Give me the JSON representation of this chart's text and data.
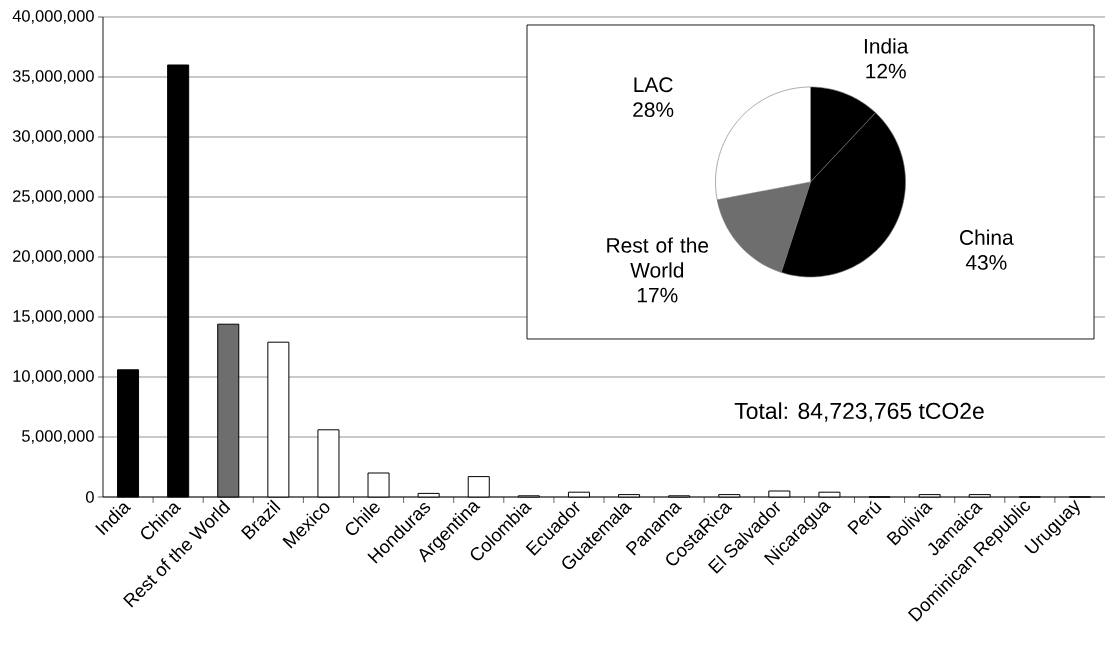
{
  "chart_data": [
    {
      "type": "bar",
      "categories": [
        "India",
        "China",
        "Rest of the World",
        "Brazil",
        "Mexico",
        "Chile",
        "Honduras",
        "Argentina",
        "Colombia",
        "Ecuador",
        "Guatemala",
        "Panama",
        "CostaRica",
        "El Salvador",
        "Nicaragua",
        "Perú",
        "Bolivia",
        "Jamaica",
        "Dominican Republic",
        "Uruguay"
      ],
      "values": [
        10600000,
        36000000,
        14400000,
        12900000,
        5600000,
        2000000,
        300000,
        1700000,
        100000,
        400000,
        200000,
        100000,
        200000,
        500000,
        400000,
        0,
        200000,
        200000,
        0,
        0
      ],
      "colors": [
        "#000000",
        "#000000",
        "#6e6e6e",
        "#ffffff",
        "#ffffff",
        "#ffffff",
        "#ffffff",
        "#ffffff",
        "#ffffff",
        "#ffffff",
        "#ffffff",
        "#ffffff",
        "#ffffff",
        "#ffffff",
        "#ffffff",
        "#ffffff",
        "#ffffff",
        "#ffffff",
        "#ffffff",
        "#ffffff"
      ],
      "ylim": [
        0,
        40000000
      ],
      "yticks": [
        0,
        {
          "value": 5000000,
          "label": "5,000,000"
        },
        {
          "value": 10000000,
          "label": "10,000,000"
        },
        {
          "value": 15000000,
          "label": "15,000,000"
        },
        {
          "value": 20000000,
          "label": "20,000,000"
        },
        {
          "value": 25000000,
          "label": "25,000,000"
        },
        {
          "value": 30000000,
          "label": "30,000,000"
        },
        {
          "value": 35000000,
          "label": "35,000,000"
        },
        {
          "value": 40000000,
          "label": "40,000,000"
        }
      ],
      "grid": "y",
      "annotations": [
        "Total: 84,723,765 tCO2e"
      ]
    },
    {
      "type": "pie",
      "categories": [
        "India",
        "China",
        "Rest of the World",
        "LAC"
      ],
      "values": [
        12,
        43,
        17,
        28
      ],
      "colors": [
        "#000000",
        "#000000",
        "#6e6e6e",
        "#ffffff"
      ],
      "value_labels": [
        "12%",
        "43%",
        "17%",
        "28%"
      ]
    }
  ]
}
